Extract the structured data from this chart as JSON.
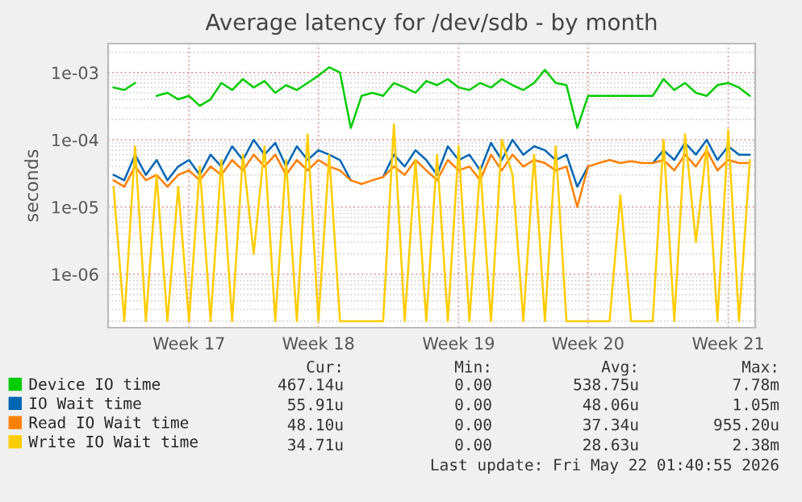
{
  "chart_data": {
    "type": "line",
    "title": "Average latency for /dev/sdb - by month",
    "ylabel": "seconds",
    "categories": [
      null,
      null,
      null,
      null,
      null,
      null,
      null,
      "Week 17",
      null,
      null,
      null,
      null,
      null,
      null,
      null,
      null,
      null,
      null,
      null,
      "Week 18",
      null,
      null,
      null,
      null,
      null,
      null,
      null,
      null,
      null,
      null,
      null,
      null,
      "Week 19",
      null,
      null,
      null,
      null,
      null,
      null,
      null,
      null,
      null,
      null,
      null,
      "Week 20",
      null,
      null,
      null,
      null,
      null,
      null,
      null,
      null,
      null,
      null,
      null,
      null,
      "Week 21",
      null,
      null
    ],
    "series": [
      {
        "name": "Device IO time",
        "color": "#00cc00",
        "values": [
          0.0006,
          0.00055,
          0.0007,
          null,
          0.00045,
          0.0005,
          0.0004,
          0.00045,
          0.00032,
          0.0004,
          0.0007,
          0.00055,
          0.0008,
          0.0006,
          0.00075,
          0.0005,
          0.00065,
          0.00055,
          0.0007,
          0.0009,
          0.0012,
          0.001,
          0.00015,
          0.00045,
          0.0005,
          0.00045,
          0.0007,
          0.0006,
          0.0005,
          0.00075,
          0.00065,
          0.0008,
          0.0006,
          0.00055,
          0.0007,
          0.0006,
          0.0008,
          0.00065,
          0.00055,
          0.0007,
          0.0011,
          0.0007,
          0.00065,
          0.00015,
          0.00045,
          0.00045,
          0.00045,
          0.00045,
          0.00045,
          0.00045,
          0.00045,
          0.0008,
          0.00055,
          0.0007,
          0.0005,
          0.00045,
          0.00065,
          0.0007,
          0.0006,
          0.00045
        ]
      },
      {
        "name": "IO Wait time",
        "color": "#0066b3",
        "values": [
          3e-05,
          2.5e-05,
          6e-05,
          3e-05,
          5e-05,
          2.5e-05,
          4e-05,
          5e-05,
          3e-05,
          6e-05,
          4e-05,
          8e-05,
          5e-05,
          0.0001,
          6e-05,
          9e-05,
          4e-05,
          8e-05,
          5e-05,
          7e-05,
          6e-05,
          5e-05,
          2.5e-05,
          null,
          null,
          2.8e-05,
          6e-05,
          4e-05,
          7e-05,
          5e-05,
          3e-05,
          8e-05,
          5e-05,
          6e-05,
          3.5e-05,
          9e-05,
          5e-05,
          0.0001,
          6e-05,
          8e-05,
          7e-05,
          5e-05,
          6e-05,
          2e-05,
          4e-05,
          null,
          null,
          null,
          null,
          null,
          4.5e-05,
          7e-05,
          5e-05,
          9e-05,
          6e-05,
          0.0001,
          5e-05,
          8e-05,
          6e-05,
          6e-05
        ]
      },
      {
        "name": "Read IO Wait time",
        "color": "#ff8000",
        "values": [
          2.5e-05,
          2e-05,
          4e-05,
          2.5e-05,
          3e-05,
          2e-05,
          3e-05,
          3.5e-05,
          2.5e-05,
          4e-05,
          3e-05,
          5e-05,
          3.5e-05,
          6e-05,
          4e-05,
          6e-05,
          3e-05,
          5e-05,
          3.5e-05,
          5e-05,
          4e-05,
          3.5e-05,
          2.5e-05,
          2.2e-05,
          2.5e-05,
          2.8e-05,
          4e-05,
          3e-05,
          5e-05,
          3.5e-05,
          2.5e-05,
          5e-05,
          3.5e-05,
          4e-05,
          2.5e-05,
          6e-05,
          3.5e-05,
          6e-05,
          4e-05,
          5e-05,
          4.5e-05,
          3.5e-05,
          4e-05,
          1e-05,
          4e-05,
          4.5e-05,
          5e-05,
          4.5e-05,
          4.8e-05,
          4.5e-05,
          4.5e-05,
          5e-05,
          3.5e-05,
          6e-05,
          4e-05,
          7e-05,
          3.5e-05,
          5e-05,
          4.5e-05,
          4.5e-05
        ]
      },
      {
        "name": "Write IO Wait time",
        "color": "#ffcc00",
        "values": [
          2e-05,
          2e-07,
          8e-05,
          2e-07,
          3e-05,
          2e-07,
          2e-05,
          2e-07,
          4e-05,
          2e-07,
          5e-05,
          2e-07,
          6e-05,
          2e-06,
          8e-05,
          2e-07,
          5e-05,
          2e-07,
          0.00012,
          2e-07,
          6e-05,
          2e-07,
          2e-07,
          2e-07,
          2e-07,
          2e-07,
          0.00017,
          2e-07,
          5e-05,
          2e-07,
          6e-05,
          2e-07,
          8e-05,
          2e-07,
          4e-05,
          2e-07,
          0.0001,
          3e-05,
          2e-07,
          6e-05,
          2e-07,
          8e-05,
          2e-07,
          2e-07,
          2e-07,
          2e-07,
          2e-07,
          1.5e-05,
          2e-07,
          2e-07,
          2e-07,
          0.0001,
          2e-07,
          0.00012,
          3e-06,
          8e-05,
          2e-07,
          0.00014,
          2e-07,
          5e-05
        ]
      }
    ],
    "log": true,
    "ylim": [
      1.6e-07,
      0.0027
    ],
    "yticks": [
      {
        "value": 1e-06,
        "label": "1e-06"
      },
      {
        "value": 1e-05,
        "label": "1e-05"
      },
      {
        "value": 0.0001,
        "label": "1e-04"
      },
      {
        "value": 0.001,
        "label": "1e-03"
      }
    ],
    "grid": true,
    "legend": "bottom",
    "line_style": "solid",
    "marker": "none",
    "annotations": [
      "Cur:",
      "Min:",
      "Avg:",
      "Max:",
      "467.14u",
      "0.00",
      "538.75u",
      "7.78m",
      "55.91u",
      "0.00",
      "48.06u",
      "1.05m",
      "48.10u",
      "0.00",
      "37.34u",
      "955.20u",
      "34.71u",
      "0.00",
      "28.63u",
      "2.38m",
      "Last update: Fri May 22 01:40:55 2026"
    ]
  }
}
